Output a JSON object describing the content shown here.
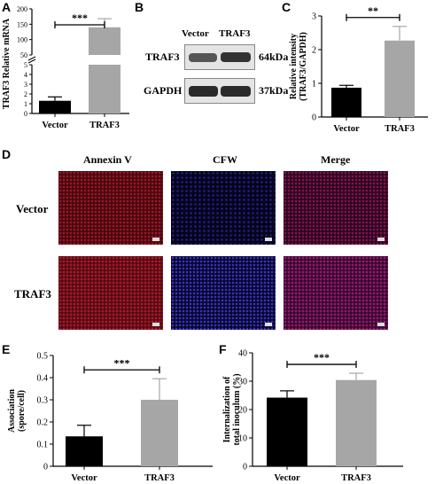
{
  "panel_letters": {
    "A": "A",
    "B": "B",
    "C": "C",
    "D": "D",
    "E": "E",
    "F": "F"
  },
  "western": {
    "col_vector": "Vector",
    "col_traf3": "TRAF3",
    "row1_label": "TRAF3",
    "row1_kda": "64kDa",
    "row2_label": "GAPDH",
    "row2_kda": "37kDa"
  },
  "microscopy": {
    "columns": [
      "Annexin V",
      "CFW",
      "Merge"
    ],
    "rows": [
      "Vector",
      "TRAF3"
    ],
    "colors": {
      "annexin": "#7a0c18",
      "cfw": "#1a1060",
      "merge": "#5a1040"
    }
  },
  "colors": {
    "vector_bar": "#000000",
    "traf3_bar": "#a6a6a6"
  },
  "chart_data": [
    {
      "id": "A",
      "type": "bar",
      "categories": [
        "Vector",
        "TRAF3"
      ],
      "values": [
        1.3,
        140
      ],
      "errors": [
        0.4,
        28
      ],
      "ylabel": "TRAF3  Relative mRNA",
      "axis_break": true,
      "lower_ticks": [
        "0",
        "1",
        "2",
        "3",
        "4",
        "5"
      ],
      "upper_ticks": [
        "50",
        "100",
        "150",
        "200"
      ],
      "significance": "***"
    },
    {
      "id": "C",
      "type": "bar",
      "categories": [
        "Vector",
        "TRAF3"
      ],
      "values": [
        0.87,
        2.27
      ],
      "errors": [
        0.07,
        0.42
      ],
      "ylabel": "Relative intensity (TRAF3/GAPDH)",
      "ylim": [
        0,
        3
      ],
      "yticks": [
        0,
        1,
        2,
        3
      ],
      "significance": "**"
    },
    {
      "id": "E",
      "type": "bar",
      "categories": [
        "Vector",
        "TRAF3"
      ],
      "values": [
        0.135,
        0.3
      ],
      "errors": [
        0.05,
        0.095
      ],
      "ylabel": "Association (spore/cell)",
      "ylim": [
        0,
        0.5
      ],
      "yticks": [
        0,
        0.1,
        0.2,
        0.3,
        0.4,
        0.5
      ],
      "significance": "***"
    },
    {
      "id": "F",
      "type": "bar",
      "categories": [
        "Vector",
        "TRAF3"
      ],
      "values": [
        24.2,
        30.4
      ],
      "errors": [
        2.4,
        2.4
      ],
      "ylabel": "Internalization of total inoculum (%)",
      "ylim": [
        0,
        40
      ],
      "yticks": [
        0,
        10,
        20,
        30,
        40
      ],
      "significance": "***"
    }
  ]
}
